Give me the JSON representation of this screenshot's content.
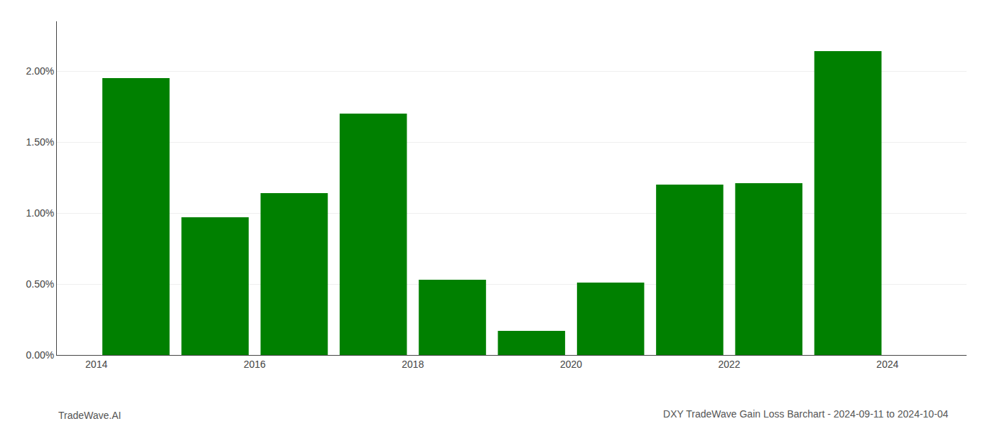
{
  "chart_data": {
    "type": "bar",
    "title": "DXY TradeWave Gain Loss Barchart - 2024-09-11 to 2024-10-04",
    "annotations": [
      {
        "text": "TradeWave.AI"
      }
    ],
    "x": [
      2014,
      2015,
      2016,
      2017,
      2018,
      2019,
      2020,
      2021,
      2022,
      2023
    ],
    "values": [
      0.0195,
      0.0097,
      0.0114,
      0.017,
      0.0053,
      0.0017,
      0.0051,
      0.012,
      0.0121,
      0.0214
    ],
    "color": "#008000",
    "xlim": [
      2013.0,
      2024.5
    ],
    "xticks": [
      {
        "value": 2013.5,
        "label": "2014"
      },
      {
        "value": 2015.5,
        "label": "2016"
      },
      {
        "value": 2017.5,
        "label": "2018"
      },
      {
        "value": 2019.5,
        "label": "2020"
      },
      {
        "value": 2021.5,
        "label": "2022"
      },
      {
        "value": 2023.5,
        "label": "2024"
      }
    ],
    "ylim": [
      0,
      0.0235
    ],
    "yticks": [
      {
        "value": 0.0,
        "label": "0.00%"
      },
      {
        "value": 0.005,
        "label": "0.50%"
      },
      {
        "value": 0.01,
        "label": "1.00%"
      },
      {
        "value": 0.015,
        "label": "1.50%"
      },
      {
        "value": 0.02,
        "label": "2.00%"
      }
    ],
    "grid": true
  }
}
